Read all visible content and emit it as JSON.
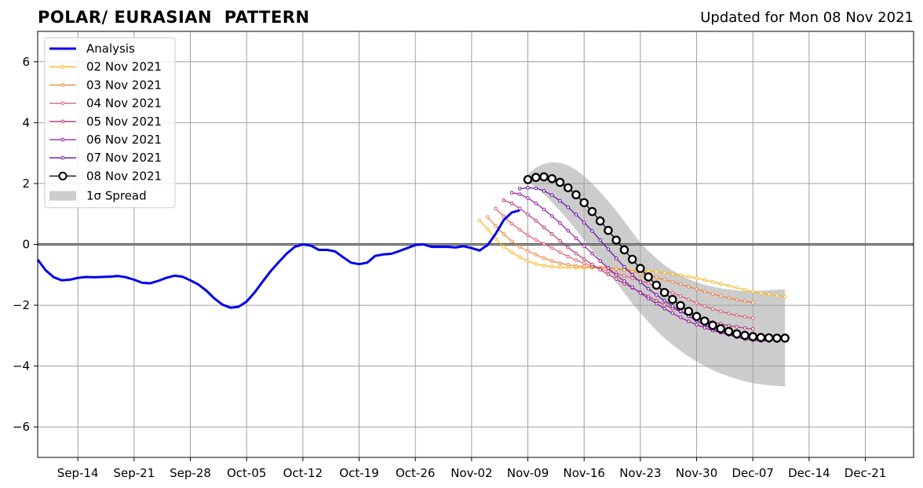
{
  "chart_data": {
    "type": "line",
    "title": "POLAR/ EURASIAN  PATTERN",
    "subtitle": "Updated for Mon 08 Nov 2021",
    "xlabel": "",
    "ylabel": "",
    "x_ticks": [
      "Sep-14",
      "Sep-21",
      "Sep-28",
      "Oct-05",
      "Oct-12",
      "Oct-19",
      "Oct-26",
      "Nov-02",
      "Nov-09",
      "Nov-16",
      "Nov-23",
      "Nov-30",
      "Dec-07",
      "Dec-14",
      "Dec-21"
    ],
    "y_ticks": [
      "6",
      "4",
      "2",
      "0",
      "−2",
      "−4",
      "−6"
    ],
    "x_range": [
      "2021-09-09",
      "2021-12-27"
    ],
    "ylim": [
      -7,
      7
    ],
    "grid": true,
    "legend_position": "top-left",
    "colors": {
      "analysis": "#0000ee",
      "spread": "#cccccc",
      "zero_line": "#555555",
      "grid": "#a0a0a0"
    },
    "analysis": {
      "name": "Analysis",
      "x": [
        "2021-09-09",
        "2021-09-10",
        "2021-09-11",
        "2021-09-12",
        "2021-09-13",
        "2021-09-14",
        "2021-09-15",
        "2021-09-16",
        "2021-09-17",
        "2021-09-18",
        "2021-09-19",
        "2021-09-20",
        "2021-09-21",
        "2021-09-22",
        "2021-09-23",
        "2021-09-24",
        "2021-09-25",
        "2021-09-26",
        "2021-09-27",
        "2021-09-28",
        "2021-09-29",
        "2021-09-30",
        "2021-10-01",
        "2021-10-02",
        "2021-10-03",
        "2021-10-04",
        "2021-10-05",
        "2021-10-06",
        "2021-10-07",
        "2021-10-08",
        "2021-10-09",
        "2021-10-10",
        "2021-10-11",
        "2021-10-12",
        "2021-10-13",
        "2021-10-14",
        "2021-10-15",
        "2021-10-16",
        "2021-10-17",
        "2021-10-18",
        "2021-10-19",
        "2021-10-20",
        "2021-10-21",
        "2021-10-22",
        "2021-10-23",
        "2021-10-24",
        "2021-10-25",
        "2021-10-26",
        "2021-10-27",
        "2021-10-28",
        "2021-10-29",
        "2021-10-30",
        "2021-10-31",
        "2021-11-01",
        "2021-11-02",
        "2021-11-03",
        "2021-11-04",
        "2021-11-05",
        "2021-11-06",
        "2021-11-07",
        "2021-11-08"
      ],
      "y": [
        -0.5,
        -0.85,
        -1.08,
        -1.18,
        -1.16,
        -1.1,
        -1.07,
        -1.08,
        -1.07,
        -1.06,
        -1.04,
        -1.08,
        -1.16,
        -1.26,
        -1.28,
        -1.2,
        -1.1,
        -1.03,
        -1.06,
        -1.18,
        -1.32,
        -1.52,
        -1.78,
        -1.98,
        -2.08,
        -2.05,
        -1.88,
        -1.58,
        -1.22,
        -0.88,
        -0.58,
        -0.3,
        -0.08,
        0.0,
        -0.04,
        -0.18,
        -0.18,
        -0.23,
        -0.42,
        -0.6,
        -0.65,
        -0.6,
        -0.38,
        -0.33,
        -0.31,
        -0.22,
        -0.12,
        -0.02,
        0.0,
        -0.08,
        -0.08,
        -0.08,
        -0.1,
        -0.06,
        -0.12,
        -0.2,
        -0.02,
        0.35,
        0.8,
        1.05,
        1.12
      ]
    },
    "series": [
      {
        "name": "02 Nov 2021",
        "color": "#fbb61a",
        "start": "2021-11-03",
        "values": [
          0.78,
          0.5,
          0.18,
          -0.08,
          -0.26,
          -0.42,
          -0.55,
          -0.64,
          -0.7,
          -0.73,
          -0.75,
          -0.76,
          -0.77,
          -0.77,
          -0.77,
          -0.78,
          -0.78,
          -0.8,
          -0.82,
          -0.84,
          -0.86,
          -0.88,
          -0.9,
          -0.93,
          -0.97,
          -1.01,
          -1.06,
          -1.11,
          -1.17,
          -1.23,
          -1.3,
          -1.36,
          -1.42,
          -1.49,
          -1.55,
          -1.6,
          -1.64,
          -1.68,
          -1.72
        ]
      },
      {
        "name": "03 Nov 2021",
        "color": "#f1813a",
        "start": "2021-11-04",
        "values": [
          0.9,
          0.6,
          0.34,
          0.1,
          -0.08,
          -0.22,
          -0.34,
          -0.45,
          -0.55,
          -0.62,
          -0.67,
          -0.71,
          -0.73,
          -0.74,
          -0.75,
          -0.77,
          -0.8,
          -0.84,
          -0.89,
          -0.95,
          -1.02,
          -1.09,
          -1.16,
          -1.23,
          -1.31,
          -1.39,
          -1.47,
          -1.55,
          -1.63,
          -1.7,
          -1.76,
          -1.82,
          -1.87,
          -1.91
        ]
      },
      {
        "name": "04 Nov 2021",
        "color": "#dd5a6a",
        "start": "2021-11-05",
        "values": [
          1.18,
          0.92,
          0.68,
          0.48,
          0.3,
          0.15,
          0.02,
          -0.12,
          -0.26,
          -0.4,
          -0.52,
          -0.62,
          -0.72,
          -0.8,
          -0.88,
          -0.95,
          -1.03,
          -1.11,
          -1.2,
          -1.29,
          -1.39,
          -1.49,
          -1.59,
          -1.7,
          -1.81,
          -1.92,
          -2.03,
          -2.12,
          -2.2,
          -2.27,
          -2.33,
          -2.38,
          -2.42
        ]
      },
      {
        "name": "05 Nov 2021",
        "color": "#b5367a",
        "start": "2021-11-06",
        "values": [
          1.45,
          1.35,
          1.18,
          0.98,
          0.78,
          0.56,
          0.34,
          0.12,
          -0.1,
          -0.3,
          -0.48,
          -0.66,
          -0.83,
          -0.99,
          -1.14,
          -1.29,
          -1.43,
          -1.57,
          -1.71,
          -1.85,
          -1.98,
          -2.1,
          -2.21,
          -2.31,
          -2.4,
          -2.48,
          -2.55,
          -2.61,
          -2.67,
          -2.71,
          -2.75,
          -2.78
        ]
      },
      {
        "name": "06 Nov 2021",
        "color": "#9114a1",
        "start": "2021-11-07",
        "values": [
          1.7,
          1.65,
          1.52,
          1.35,
          1.15,
          0.93,
          0.7,
          0.45,
          0.2,
          -0.05,
          -0.3,
          -0.55,
          -0.78,
          -1.0,
          -1.21,
          -1.41,
          -1.6,
          -1.78,
          -1.95,
          -2.11,
          -2.26,
          -2.4,
          -2.53,
          -2.64,
          -2.74,
          -2.83,
          -2.9,
          -2.96,
          -3.01,
          -3.05,
          -3.08,
          -3.1
        ]
      },
      {
        "name": "07 Nov 2021",
        "color": "#6a0fa8",
        "start": "2021-11-08",
        "values": [
          1.83,
          1.86,
          1.84,
          1.76,
          1.62,
          1.43,
          1.22,
          0.98,
          0.72,
          0.44,
          0.14,
          -0.16,
          -0.46,
          -0.74,
          -1.0,
          -1.24,
          -1.46,
          -1.66,
          -1.85,
          -2.03,
          -2.2,
          -2.36,
          -2.51,
          -2.65,
          -2.77,
          -2.88,
          -2.97,
          -3.05,
          -3.11,
          -3.15,
          -3.17,
          -3.17
        ]
      },
      {
        "name": "08 Nov 2021",
        "color": "#000000",
        "start": "2021-11-09",
        "values": [
          2.13,
          2.2,
          2.22,
          2.16,
          2.04,
          1.86,
          1.63,
          1.37,
          1.08,
          0.77,
          0.46,
          0.14,
          -0.18,
          -0.49,
          -0.79,
          -1.07,
          -1.34,
          -1.58,
          -1.81,
          -2.01,
          -2.2,
          -2.37,
          -2.52,
          -2.66,
          -2.77,
          -2.86,
          -2.94,
          -2.99,
          -3.03,
          -3.06,
          -3.07,
          -3.08,
          -3.08
        ]
      }
    ],
    "spread": {
      "name": "1σ Spread",
      "start": "2021-11-09",
      "upper": [
        2.3,
        2.52,
        2.65,
        2.7,
        2.68,
        2.6,
        2.45,
        2.25,
        2.0,
        1.72,
        1.42,
        1.1,
        0.75,
        0.4,
        0.06,
        -0.22,
        -0.46,
        -0.68,
        -0.86,
        -1.01,
        -1.14,
        -1.24,
        -1.33,
        -1.39,
        -1.44,
        -1.48,
        -1.51,
        -1.53,
        -1.53,
        -1.52,
        -1.5,
        -1.49,
        -1.48
      ],
      "lower": [
        2.05,
        1.88,
        1.65,
        1.38,
        1.1,
        0.8,
        0.48,
        0.14,
        -0.2,
        -0.55,
        -0.9,
        -1.25,
        -1.6,
        -1.94,
        -2.25,
        -2.55,
        -2.83,
        -3.08,
        -3.3,
        -3.5,
        -3.68,
        -3.85,
        -4.0,
        -4.13,
        -4.24,
        -4.34,
        -4.43,
        -4.5,
        -4.56,
        -4.6,
        -4.63,
        -4.65,
        -4.67
      ]
    }
  }
}
